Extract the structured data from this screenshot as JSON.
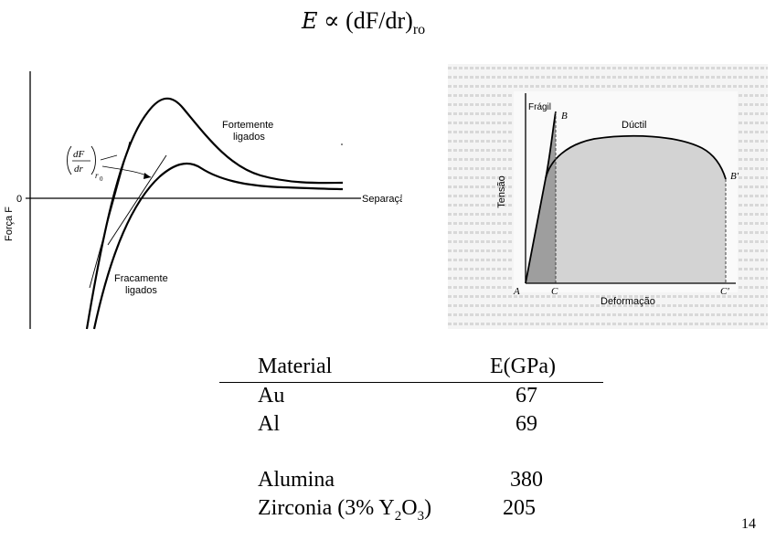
{
  "formula": {
    "symbol": "E",
    "rel": "∝",
    "expr": "(dF/dr)",
    "sub": "ro"
  },
  "left_figure": {
    "y_label": "Força F",
    "x_label": "Separação r",
    "zero_label": "0",
    "strong_label_1": "Fortemente",
    "strong_label_2": "ligados",
    "weak_label_1": "Fracamente",
    "weak_label_2": "ligados",
    "deriv_num": "dF",
    "deriv_den": "dr",
    "deriv_sub": "r",
    "deriv_subsub": "0"
  },
  "right_figure": {
    "y_label": "Tensão",
    "x_label": "Deformação",
    "fragil": "Frágil",
    "ductil": "Dúctil",
    "pt_B": "B",
    "pt_Bp": "B'",
    "pt_A": "A",
    "pt_C": "C",
    "pt_Cp": "C'"
  },
  "table": {
    "headers": [
      "Material",
      "E(GPa)"
    ],
    "rows": [
      {
        "material": "Au",
        "value": "67"
      },
      {
        "material": "Al",
        "value": "69"
      },
      {
        "material": "Alumina",
        "value": "380"
      },
      {
        "material_pre": "Zirconia (3% Y",
        "sub1": "2",
        "mid": "O",
        "sub2": "3",
        "post": ")",
        "value": "205"
      }
    ]
  },
  "page_number": "14"
}
